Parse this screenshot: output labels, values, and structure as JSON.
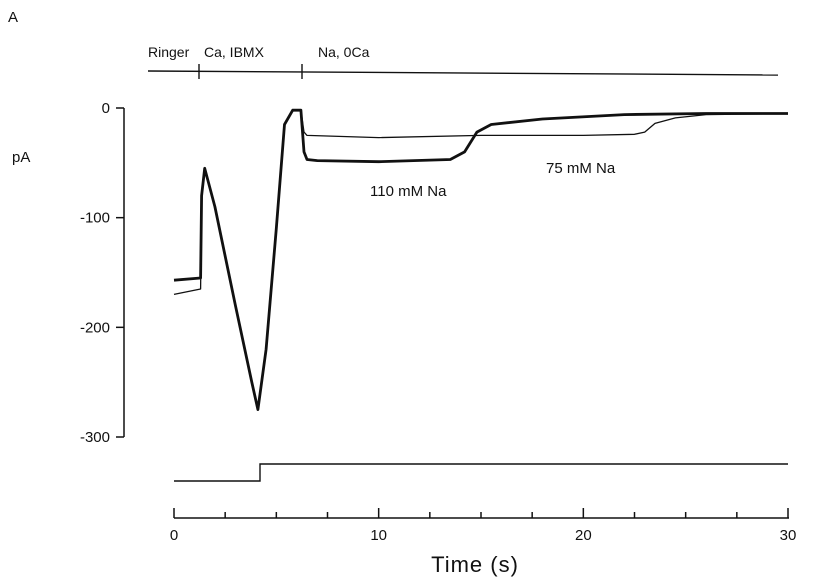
{
  "chart_data": {
    "type": "line",
    "panel_label": "A",
    "ylabel": "pA",
    "xlabel": "Time (s)",
    "xlim": [
      0,
      30
    ],
    "ylim": [
      -300,
      0
    ],
    "x_ticks": [
      0,
      10,
      20,
      30
    ],
    "y_ticks": [
      0,
      -100,
      -200,
      -300
    ],
    "solution_labels": [
      "Ringer",
      "Ca, IBMX",
      "Na, 0Ca"
    ],
    "solution_changes_s": [
      1.3,
      6.3
    ],
    "annotations": [
      "110 mM Na",
      "75 mM Na"
    ],
    "series": [
      {
        "name": "110 mM Na",
        "style": "thick",
        "x": [
          0,
          1.3,
          1.35,
          1.5,
          2.0,
          3.0,
          3.8,
          4.1,
          4.5,
          5.0,
          5.4,
          5.8,
          6.2,
          6.35,
          6.5,
          7.0,
          10.0,
          13.5,
          14.2,
          14.8,
          15.5,
          18.0,
          22.0,
          26.0,
          30.0
        ],
        "y": [
          -157,
          -155,
          -80,
          -55,
          -90,
          -180,
          -250,
          -275,
          -220,
          -110,
          -15,
          -2,
          -2,
          -40,
          -47,
          -48,
          -49,
          -47,
          -40,
          -22,
          -15,
          -10,
          -6,
          -5,
          -5
        ]
      },
      {
        "name": "75 mM Na",
        "style": "thin",
        "x": [
          0,
          1.3,
          1.35,
          1.5,
          2.0,
          3.0,
          3.8,
          4.1,
          4.5,
          5.0,
          5.4,
          5.8,
          6.2,
          6.35,
          6.5,
          10.0,
          15.0,
          20.0,
          22.5,
          23.0,
          23.5,
          24.5,
          26.0,
          30.0
        ],
        "y": [
          -170,
          -165,
          -80,
          -55,
          -90,
          -180,
          -250,
          -275,
          -220,
          -110,
          -15,
          -2,
          -2,
          -22,
          -25,
          -27,
          -25,
          -25,
          -24,
          -22,
          -14,
          -9,
          -6,
          -5
        ]
      }
    ],
    "solution_monitor": {
      "step_time_s": 4.2,
      "x": [
        0,
        4.2,
        4.2,
        30
      ],
      "level": [
        0,
        0,
        1,
        1
      ]
    }
  }
}
